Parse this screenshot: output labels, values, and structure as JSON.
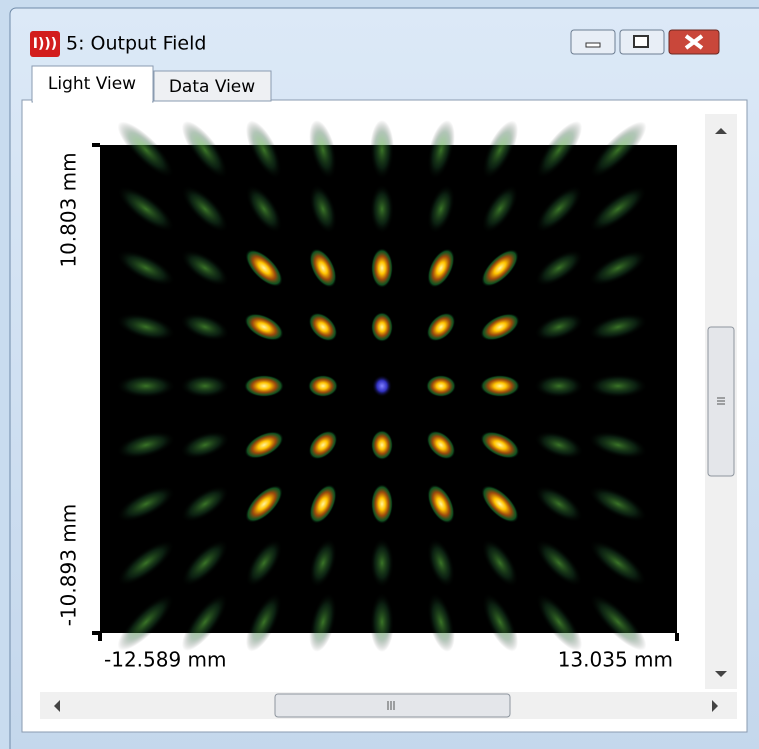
{
  "window": {
    "title": "5: Output Field",
    "tabs": [
      "Light View",
      "Data View"
    ]
  },
  "plot": {
    "y_top_label": "10.803 mm",
    "y_bottom_label": "-10.893 mm",
    "x_left_label": "-12.589 mm",
    "x_right_label": "13.035 mm"
  }
}
